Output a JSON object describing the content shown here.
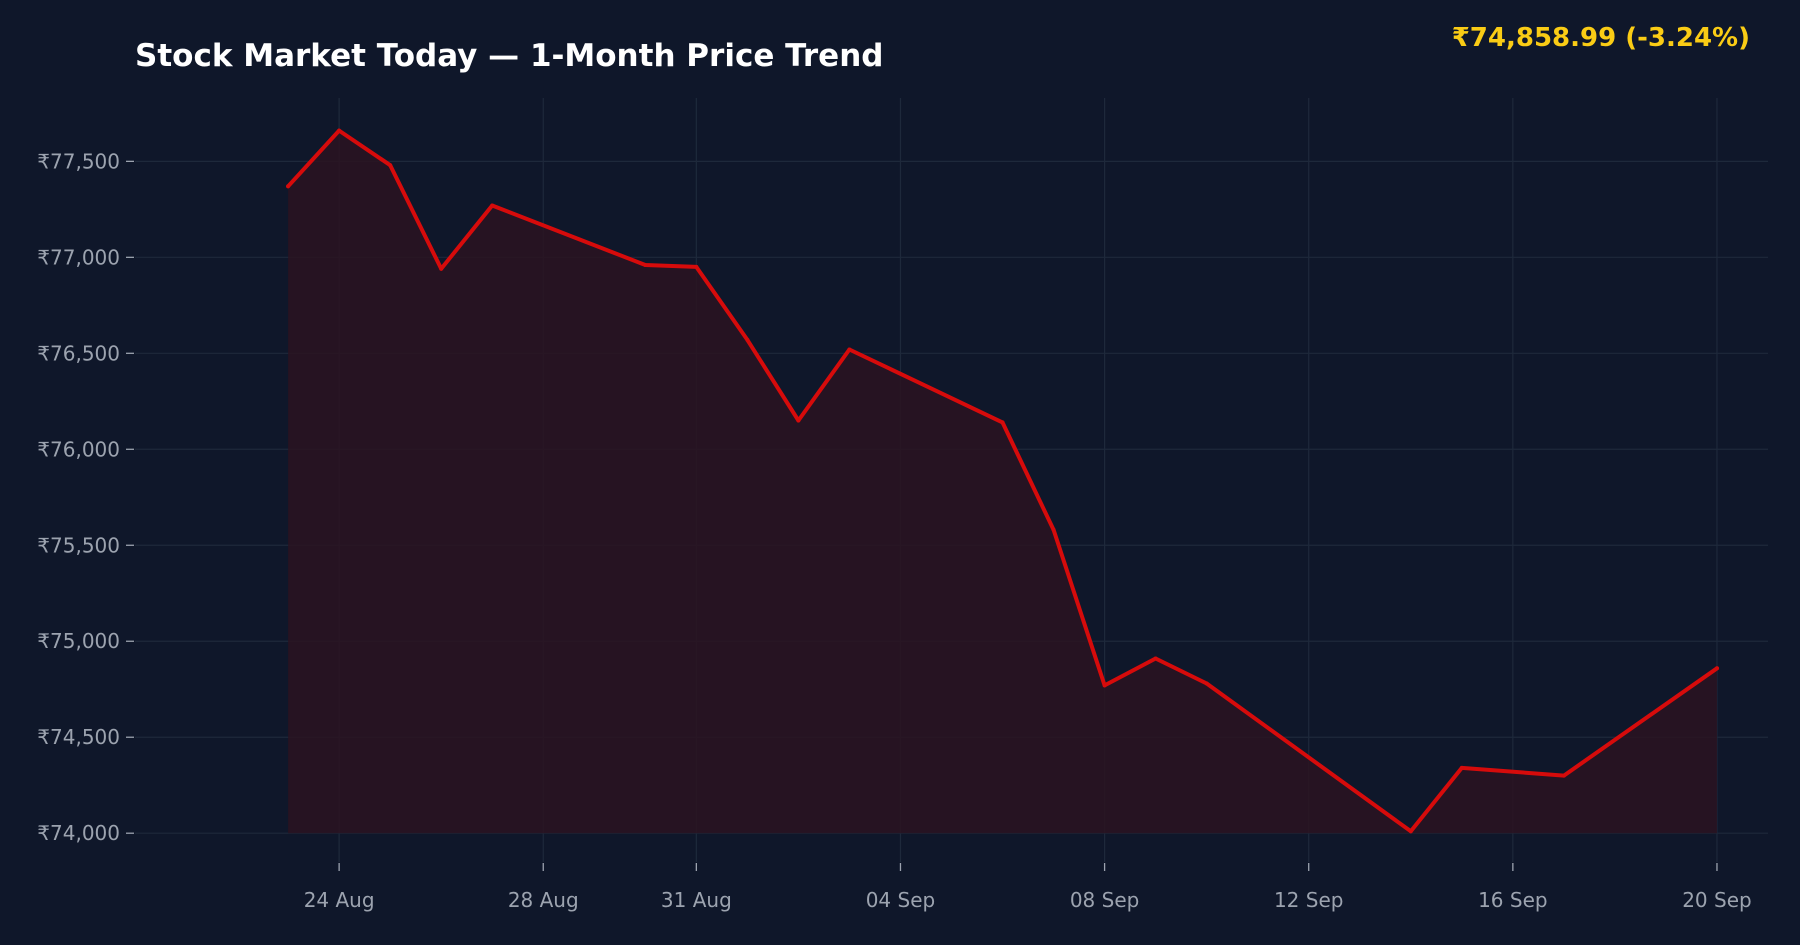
{
  "header": {
    "title": "Stock Market Today — 1-Month Price Trend",
    "price_readout": "₹74,858.99  (-3.24%)"
  },
  "colors": {
    "background": "#0f172a",
    "line": "#d60b0b",
    "area_fill": "#2a1321",
    "grid": "#1e293b",
    "tick_text": "#9ca3af",
    "price_readout": "#facc15",
    "title": "#ffffff"
  },
  "chart_data": {
    "type": "area",
    "title": "Stock Market Today — 1-Month Price Trend",
    "xlabel": "",
    "ylabel": "",
    "grid": true,
    "ylim": [
      73850,
      77830
    ],
    "xlim": [
      "2024-08-20",
      "2024-09-21"
    ],
    "y_ticks": [
      74000,
      74500,
      75000,
      75500,
      76000,
      76500,
      77000,
      77500
    ],
    "y_tick_labels": [
      "₹74,000",
      "₹74,500",
      "₹75,000",
      "₹75,500",
      "₹76,000",
      "₹76,500",
      "₹77,000",
      "₹77,500"
    ],
    "x_ticks": [
      "2024-08-24",
      "2024-08-28",
      "2024-08-31",
      "2024-09-04",
      "2024-09-08",
      "2024-09-12",
      "2024-09-16",
      "2024-09-20"
    ],
    "x_tick_labels": [
      "24 Aug",
      "28 Aug",
      "31 Aug",
      "04 Sep",
      "08 Sep",
      "12 Sep",
      "16 Sep",
      "20 Sep"
    ],
    "series": [
      {
        "points": [
          {
            "x": "2024-08-23",
            "y": 77370
          },
          {
            "x": "2024-08-24",
            "y": 77660
          },
          {
            "x": "2024-08-25",
            "y": 77480
          },
          {
            "x": "2024-08-26",
            "y": 76940
          },
          {
            "x": "2024-08-27",
            "y": 77270
          },
          {
            "x": "2024-08-30",
            "y": 76960
          },
          {
            "x": "2024-08-31",
            "y": 76950
          },
          {
            "x": "2024-09-01",
            "y": 76570
          },
          {
            "x": "2024-09-02",
            "y": 76150
          },
          {
            "x": "2024-09-03",
            "y": 76520
          },
          {
            "x": "2024-09-06",
            "y": 76140
          },
          {
            "x": "2024-09-07",
            "y": 75580
          },
          {
            "x": "2024-09-08",
            "y": 74770
          },
          {
            "x": "2024-09-09",
            "y": 74910
          },
          {
            "x": "2024-09-10",
            "y": 74780
          },
          {
            "x": "2024-09-14",
            "y": 74010
          },
          {
            "x": "2024-09-15",
            "y": 74340
          },
          {
            "x": "2024-09-17",
            "y": 74300
          },
          {
            "x": "2024-09-20",
            "y": 74858.99
          }
        ]
      }
    ]
  }
}
